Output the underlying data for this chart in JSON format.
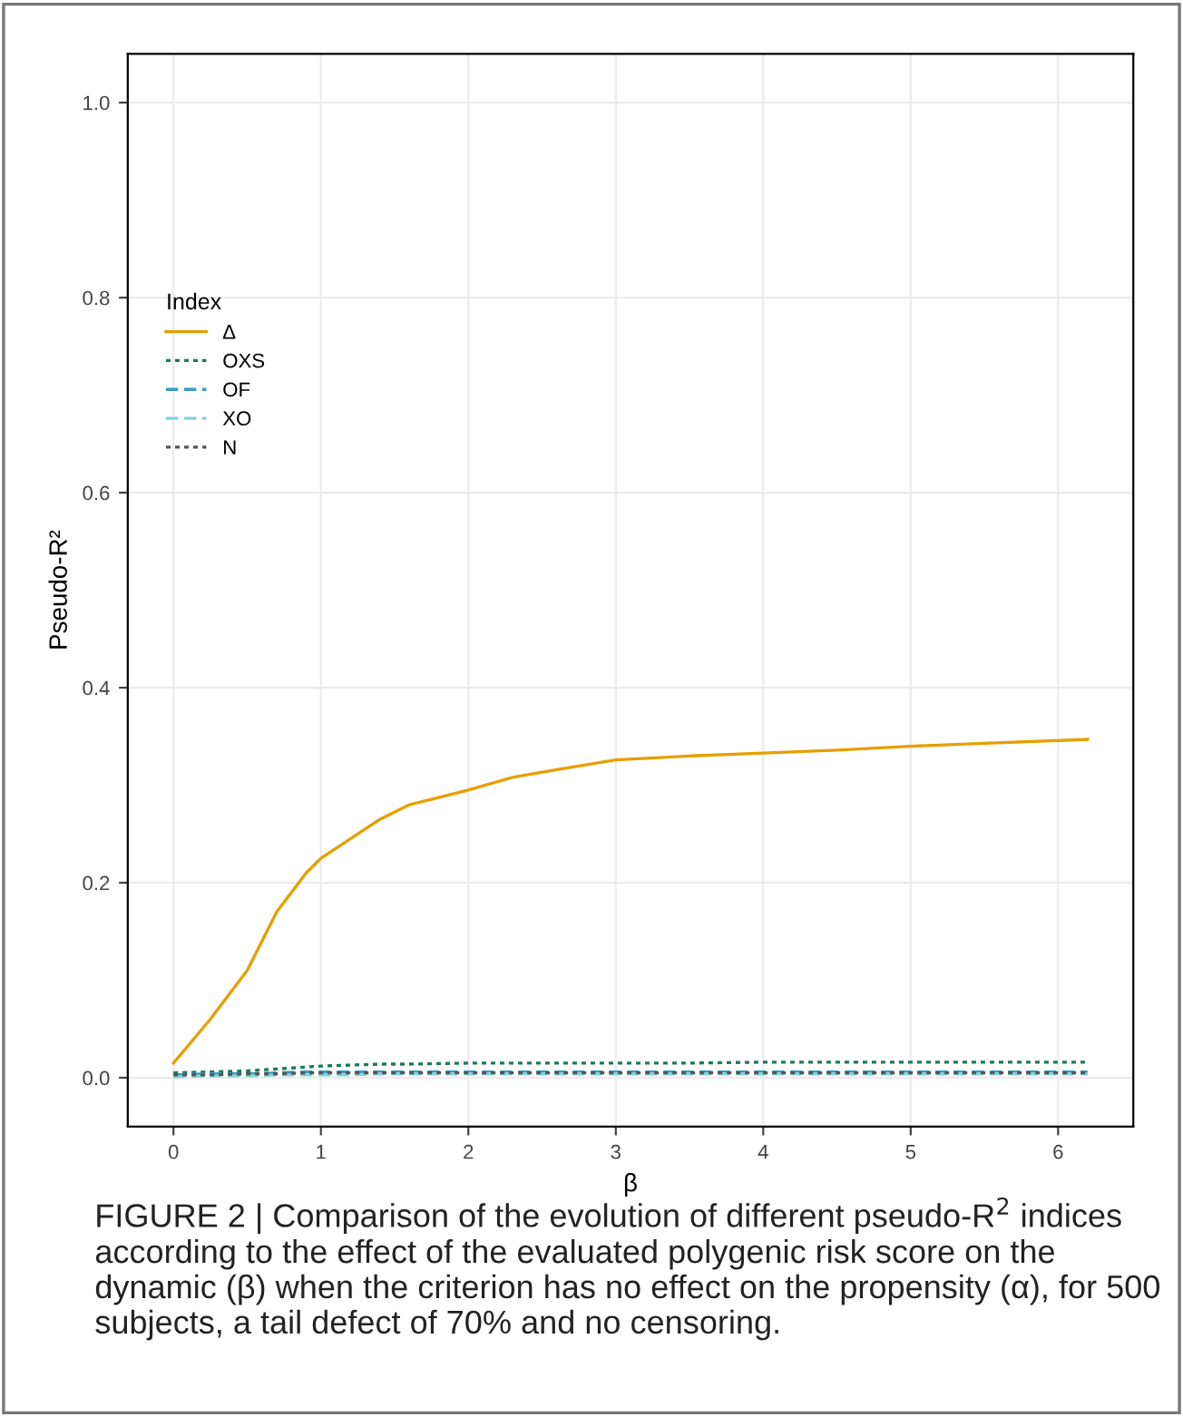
{
  "chart_data": {
    "type": "line",
    "xlabel": "β",
    "ylabel": "Pseudo-R²",
    "legend_title": "Index",
    "xlim": [
      -0.31,
      6.51
    ],
    "ylim": [
      -0.05,
      1.05
    ],
    "xticks": [
      0,
      1,
      2,
      3,
      4,
      5,
      6
    ],
    "yticks": [
      {
        "value": 0,
        "label": "0.0"
      },
      0.2,
      0.4,
      0.6,
      0.8,
      {
        "value": 1,
        "label": "1.0"
      }
    ],
    "grid": true,
    "legend": "left",
    "x": [
      0,
      0.25,
      0.5,
      0.7,
      0.9,
      1.0,
      1.2,
      1.4,
      1.6,
      2.0,
      2.3,
      2.6,
      3.0,
      3.5,
      4.0,
      4.5,
      5.0,
      5.5,
      6.2
    ],
    "series": [
      {
        "name": "Δ",
        "color": "#e69f00",
        "line_style": "solid",
        "values": [
          0.015,
          0.06,
          0.11,
          0.17,
          0.21,
          0.225,
          0.245,
          0.265,
          0.28,
          0.295,
          0.308,
          0.316,
          0.326,
          0.33,
          0.333,
          0.336,
          0.34,
          0.343,
          0.347
        ]
      },
      {
        "name": "OXS",
        "color": "#1b7a5a",
        "line_style": "dotted",
        "values": [
          0.005,
          0.006,
          0.007,
          0.009,
          0.011,
          0.012,
          0.013,
          0.014,
          0.014,
          0.015,
          0.015,
          0.015,
          0.015,
          0.015,
          0.016,
          0.016,
          0.016,
          0.016,
          0.016
        ]
      },
      {
        "name": "OF",
        "color": "#3a9bc0",
        "line_style": "dashed",
        "values": [
          0.003,
          0.004,
          0.004,
          0.005,
          0.006,
          0.006,
          0.006,
          0.006,
          0.006,
          0.006,
          0.006,
          0.006,
          0.006,
          0.006,
          0.006,
          0.006,
          0.006,
          0.006,
          0.006
        ]
      },
      {
        "name": "XO",
        "color": "#7fd3d8",
        "line_style": "dashed",
        "values": [
          0.001,
          0.002,
          0.002,
          0.003,
          0.003,
          0.003,
          0.003,
          0.004,
          0.004,
          0.004,
          0.004,
          0.004,
          0.004,
          0.004,
          0.004,
          0.004,
          0.004,
          0.004,
          0.004
        ]
      },
      {
        "name": "N",
        "color": "#555555",
        "line_style": "dotted",
        "values": [
          0.003,
          0.003,
          0.004,
          0.004,
          0.005,
          0.005,
          0.005,
          0.005,
          0.005,
          0.005,
          0.005,
          0.005,
          0.005,
          0.005,
          0.005,
          0.005,
          0.005,
          0.005,
          0.005
        ]
      }
    ],
    "annotations": [
      "FIGURE 2 | Comparison of the evolution of different pseudo-R$^{2}$ indices according to the effect of the evaluated polygenic risk score on the dynamic (β) when the criterion has no effect on the propensity (α), for 500 subjects, a tail defect of 70% and no censoring."
    ]
  }
}
